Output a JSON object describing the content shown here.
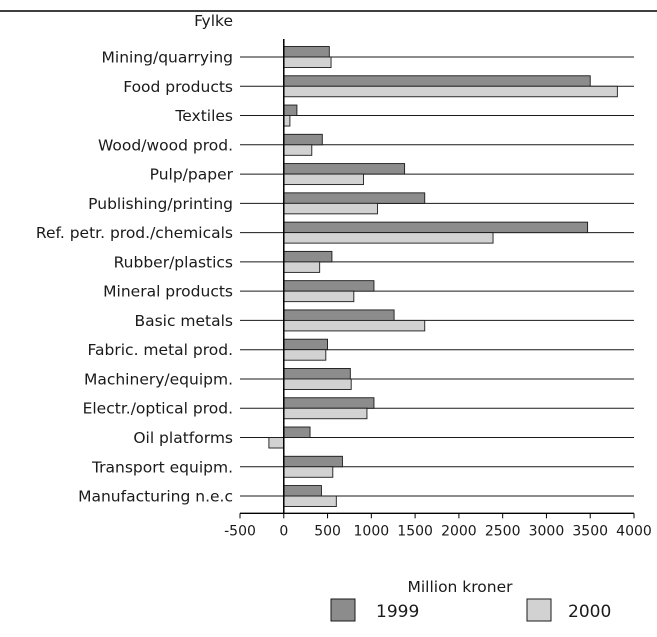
{
  "chart_data": {
    "type": "bar",
    "orientation": "horizontal",
    "top_label": "Fylke",
    "xlabel": "Million kroner",
    "ylabel": "",
    "xlim": [
      -500,
      4000
    ],
    "xticks": [
      -500,
      0,
      500,
      1000,
      1500,
      2000,
      2500,
      3000,
      3500,
      4000
    ],
    "grid": "horizontal lines at each category",
    "legend_position": "bottom",
    "categories": [
      "Mining/quarrying",
      "Food products",
      "Textiles",
      "Wood/wood prod.",
      "Pulp/paper",
      "Publishing/printing",
      "Ref. petr. prod./chemicals",
      "Rubber/plastics",
      "Mineral products",
      "Basic metals",
      "Fabric. metal prod.",
      "Machinery/equipm.",
      "Electr./optical prod.",
      "Oil platforms",
      "Transport equipm.",
      "Manufacturing n.e.c"
    ],
    "series": [
      {
        "name": "1999",
        "color": "#8c8c8c",
        "values": [
          520,
          3500,
          150,
          440,
          1380,
          1610,
          3470,
          550,
          1030,
          1260,
          500,
          760,
          1030,
          300,
          670,
          430
        ]
      },
      {
        "name": "2000",
        "color": "#d2d2d2",
        "values": [
          540,
          3810,
          70,
          320,
          910,
          1070,
          2390,
          410,
          800,
          1610,
          480,
          770,
          950,
          -170,
          560,
          600
        ]
      }
    ]
  }
}
